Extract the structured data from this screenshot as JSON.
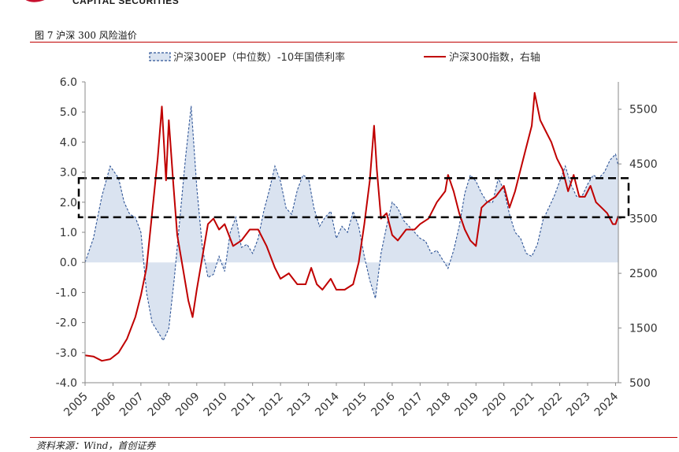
{
  "header": {
    "brand_text": "CAPITAL SECURITIES",
    "figure_title": "图 7 沪深 300 风险溢价"
  },
  "footer": {
    "source_text": "资料来源：Wind，首创证券"
  },
  "colors": {
    "ep_series": "#2f5597",
    "ep_fill": "#dae3f0",
    "index_series": "#c00000",
    "band": "#000000",
    "brand": "#c8102e"
  },
  "chart_data": {
    "type": "line",
    "legend": {
      "placement": "top",
      "items": [
        "沪深300EP（中位数）-10年国债利率",
        "沪深300指数，右轴"
      ]
    },
    "y_left": {
      "range": [
        -4.0,
        6.0
      ],
      "ticks": [
        "6.0",
        "5.0",
        "4.0",
        "3.0",
        "2.0",
        "1.0",
        "0.0",
        "-1.0",
        "-2.0",
        "-3.0",
        "-4.0"
      ]
    },
    "y_right": {
      "range": [
        500,
        6000
      ],
      "ticks": [
        "5500",
        "4500",
        "3500",
        "2500",
        "1500",
        "500"
      ]
    },
    "x_ticks": [
      "2005",
      "2006",
      "2007",
      "2008",
      "2009",
      "2010",
      "2011",
      "2012",
      "2013",
      "2014",
      "2015",
      "2016",
      "2017",
      "2018",
      "2019",
      "2020",
      "2021",
      "2022",
      "2023",
      "2024"
    ],
    "band": {
      "y_range": [
        1.5,
        2.8
      ],
      "style": "dashed-rectangle"
    },
    "series": [
      {
        "name": "沪深300EP（中位数）-10年国债利率",
        "axis": "left",
        "style": "dashed-area",
        "x": [
          2005.0,
          2005.3,
          2005.6,
          2005.9,
          2006.2,
          2006.4,
          2006.6,
          2006.8,
          2007.0,
          2007.2,
          2007.4,
          2007.6,
          2007.8,
          2008.0,
          2008.2,
          2008.4,
          2008.6,
          2008.8,
          2009.0,
          2009.2,
          2009.4,
          2009.6,
          2009.8,
          2010.0,
          2010.2,
          2010.4,
          2010.6,
          2010.8,
          2011.0,
          2011.2,
          2011.4,
          2011.6,
          2011.8,
          2012.0,
          2012.2,
          2012.4,
          2012.6,
          2012.8,
          2013.0,
          2013.2,
          2013.4,
          2013.6,
          2013.8,
          2014.0,
          2014.2,
          2014.4,
          2014.6,
          2014.8,
          2015.0,
          2015.2,
          2015.4,
          2015.6,
          2015.8,
          2016.0,
          2016.2,
          2016.4,
          2016.6,
          2016.8,
          2017.0,
          2017.2,
          2017.4,
          2017.6,
          2017.8,
          2018.0,
          2018.2,
          2018.4,
          2018.6,
          2018.8,
          2019.0,
          2019.2,
          2019.4,
          2019.6,
          2019.8,
          2020.0,
          2020.2,
          2020.4,
          2020.6,
          2020.8,
          2021.0,
          2021.2,
          2021.4,
          2021.6,
          2021.8,
          2022.0,
          2022.2,
          2022.4,
          2022.6,
          2022.8,
          2023.0,
          2023.2,
          2023.4,
          2023.6,
          2023.8,
          2024.0,
          2024.1
        ],
        "values": [
          0.0,
          0.8,
          2.2,
          3.2,
          2.8,
          2.0,
          1.6,
          1.5,
          1.0,
          -1.0,
          -2.0,
          -2.3,
          -2.6,
          -2.2,
          -0.5,
          1.5,
          3.5,
          5.2,
          2.5,
          0.5,
          -0.5,
          -0.4,
          0.2,
          -0.3,
          1.0,
          1.5,
          0.5,
          0.6,
          0.3,
          0.8,
          1.7,
          2.4,
          3.2,
          2.7,
          1.8,
          1.6,
          2.4,
          2.9,
          2.8,
          1.8,
          1.2,
          1.5,
          1.7,
          0.8,
          1.2,
          1.0,
          1.7,
          1.2,
          0.2,
          -0.6,
          -1.2,
          0.3,
          1.2,
          2.0,
          1.8,
          1.4,
          1.2,
          1.0,
          0.8,
          0.7,
          0.3,
          0.4,
          0.1,
          -0.2,
          0.4,
          1.2,
          2.3,
          2.9,
          2.7,
          2.3,
          2.0,
          2.0,
          2.8,
          2.4,
          1.6,
          1.0,
          0.8,
          0.3,
          0.2,
          0.6,
          1.4,
          1.8,
          2.2,
          2.7,
          3.2,
          2.6,
          2.2,
          2.2,
          2.6,
          2.9,
          2.8,
          3.0,
          3.4,
          3.6,
          3.2
        ]
      },
      {
        "name": "沪深300指数，右轴",
        "axis": "right",
        "style": "solid-line",
        "x": [
          2005.0,
          2005.3,
          2005.6,
          2005.9,
          2006.2,
          2006.5,
          2006.8,
          2007.0,
          2007.2,
          2007.4,
          2007.6,
          2007.75,
          2007.9,
          2008.0,
          2008.15,
          2008.3,
          2008.5,
          2008.7,
          2008.85,
          2009.0,
          2009.2,
          2009.4,
          2009.6,
          2009.8,
          2010.0,
          2010.3,
          2010.6,
          2010.9,
          2011.2,
          2011.5,
          2011.8,
          2012.0,
          2012.3,
          2012.6,
          2012.9,
          2013.1,
          2013.3,
          2013.5,
          2013.8,
          2014.0,
          2014.3,
          2014.6,
          2014.8,
          2015.0,
          2015.2,
          2015.35,
          2015.45,
          2015.6,
          2015.8,
          2016.0,
          2016.2,
          2016.5,
          2016.8,
          2017.0,
          2017.3,
          2017.6,
          2017.9,
          2018.0,
          2018.2,
          2018.4,
          2018.6,
          2018.8,
          2019.0,
          2019.2,
          2019.4,
          2019.7,
          2020.0,
          2020.2,
          2020.4,
          2020.6,
          2020.8,
          2021.0,
          2021.1,
          2021.3,
          2021.5,
          2021.7,
          2021.9,
          2022.1,
          2022.3,
          2022.5,
          2022.7,
          2022.9,
          2023.1,
          2023.3,
          2023.5,
          2023.7,
          2023.9,
          2024.0,
          2024.1
        ],
        "values": [
          1000,
          980,
          900,
          930,
          1050,
          1300,
          1700,
          2100,
          2600,
          3600,
          4600,
          5550,
          4200,
          5300,
          4200,
          3200,
          2600,
          2000,
          1700,
          2200,
          2800,
          3400,
          3500,
          3300,
          3400,
          3000,
          3100,
          3300,
          3300,
          3000,
          2600,
          2400,
          2500,
          2300,
          2300,
          2600,
          2300,
          2200,
          2400,
          2200,
          2200,
          2300,
          2700,
          3400,
          4200,
          5200,
          4400,
          3500,
          3600,
          3200,
          3100,
          3300,
          3300,
          3400,
          3500,
          3800,
          4000,
          4300,
          4000,
          3600,
          3300,
          3100,
          3000,
          3700,
          3800,
          3900,
          4100,
          3700,
          4000,
          4400,
          4800,
          5200,
          5800,
          5300,
          5100,
          4900,
          4600,
          4400,
          4000,
          4300,
          3900,
          3900,
          4100,
          3800,
          3700,
          3600,
          3400,
          3400,
          3550
        ]
      }
    ]
  }
}
